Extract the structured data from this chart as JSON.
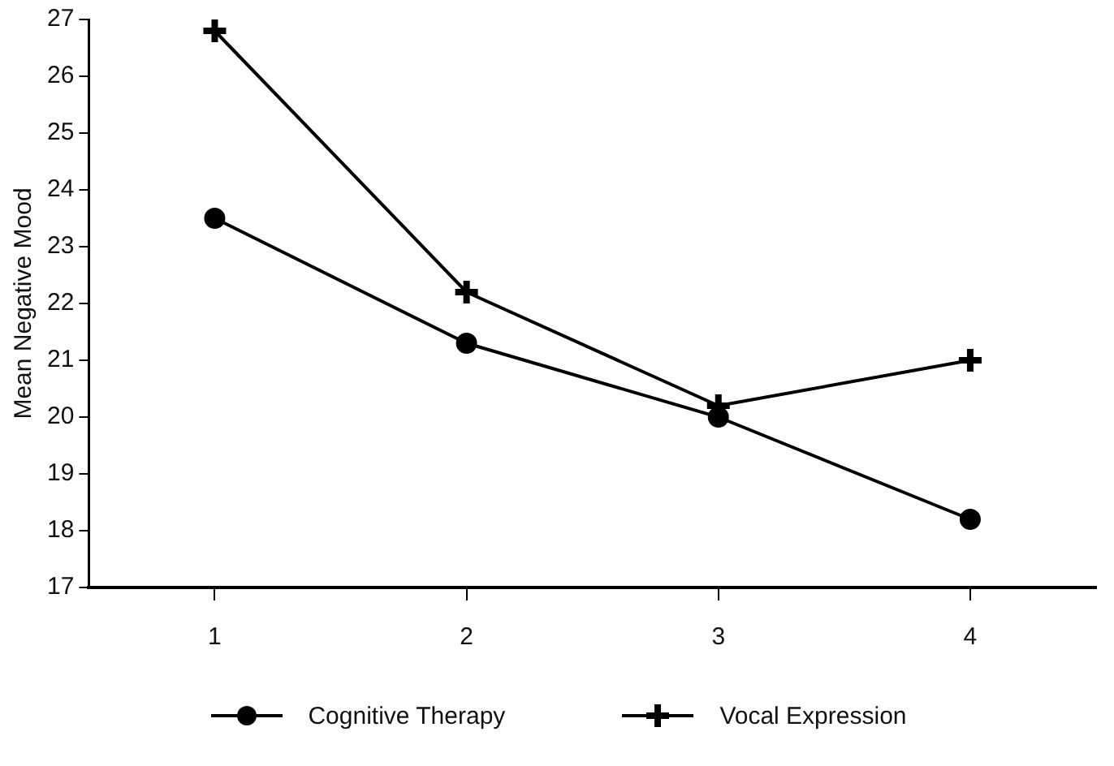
{
  "chart_data": {
    "type": "line",
    "ylabel": "Mean Negative Mood",
    "categories": [
      "1",
      "2",
      "3",
      "4"
    ],
    "series": [
      {
        "name": "Cognitive Therapy",
        "color": "#000000",
        "marker": "circle",
        "values": [
          23.5,
          21.3,
          20.0,
          18.2
        ]
      },
      {
        "name": "Vocal Expression",
        "color": "#000000",
        "marker": "cross",
        "values": [
          26.8,
          22.2,
          20.2,
          21.0
        ]
      }
    ],
    "ylim": [
      17,
      27
    ],
    "yticks": [
      17,
      18,
      19,
      20,
      21,
      22,
      23,
      24,
      25,
      26,
      27
    ],
    "grid": false,
    "legend": "bottom",
    "line_style": "solid"
  }
}
